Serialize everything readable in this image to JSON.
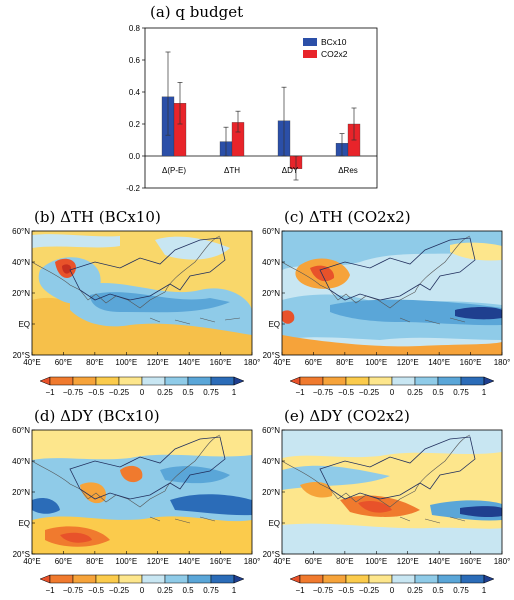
{
  "colors": {
    "bcx10": "#2b4fa8",
    "co2x2": "#e8242a"
  },
  "panel_a": {
    "title": "(a)   q budget",
    "legend": [
      {
        "label": "BCx10",
        "color": "#2b4fa8"
      },
      {
        "label": "CO2x2",
        "color": "#e8242a"
      }
    ]
  },
  "chart_data": [
    {
      "type": "bar",
      "panel": "a",
      "title": "(a)   q budget",
      "categories": [
        "Δ(P-E)",
        "ΔTH",
        "ΔDY",
        "ΔRes"
      ],
      "series": [
        {
          "name": "BCx10",
          "values": [
            0.37,
            0.09,
            0.22,
            0.08
          ],
          "err_low": [
            0.13,
            0.0,
            0.0,
            0.0
          ],
          "err_high": [
            0.65,
            0.18,
            0.43,
            0.14
          ]
        },
        {
          "name": "CO2x2",
          "values": [
            0.33,
            0.21,
            -0.08,
            0.2
          ],
          "err_low": [
            0.2,
            0.15,
            -0.15,
            0.1
          ],
          "err_high": [
            0.46,
            0.28,
            0.0,
            0.3
          ]
        }
      ],
      "ylim": [
        -0.2,
        0.8
      ],
      "yticks": [
        "0.8",
        "0.6",
        "0.4",
        "0.2",
        "0.0",
        "-0.2"
      ]
    },
    {
      "type": "heatmap",
      "panels": [
        {
          "id": "b",
          "title": "(b)   ΔTH  (BCx10)"
        },
        {
          "id": "c",
          "title": "(c)   ΔTH  (CO2x2)"
        },
        {
          "id": "d",
          "title": "(d)   ΔDY  (BCx10)"
        },
        {
          "id": "e",
          "title": "(e)   ΔDY  (CO2x2)"
        }
      ],
      "lon_ticks": [
        "40°E",
        "60°E",
        "80°E",
        "100°E",
        "120°E",
        "140°E",
        "160°E",
        "180°"
      ],
      "lat_ticks": [
        "60°N",
        "40°N",
        "20°N",
        "EQ",
        "20°S"
      ],
      "lon_range": [
        40,
        180
      ],
      "lat_range": [
        -20,
        60
      ],
      "colorbar": {
        "labels": [
          "−1",
          "−0.75",
          "−0.5",
          "−0.25",
          "0",
          "0.25",
          "0.5",
          "0.75",
          "1"
        ],
        "colors": [
          "#e8522a",
          "#f07a2e",
          "#f6a33a",
          "#fbcb4c",
          "#fde68c",
          "#c8e6f2",
          "#8fcbe8",
          "#5aa6d8",
          "#2b6cb8",
          "#1f3f8f"
        ]
      }
    }
  ]
}
